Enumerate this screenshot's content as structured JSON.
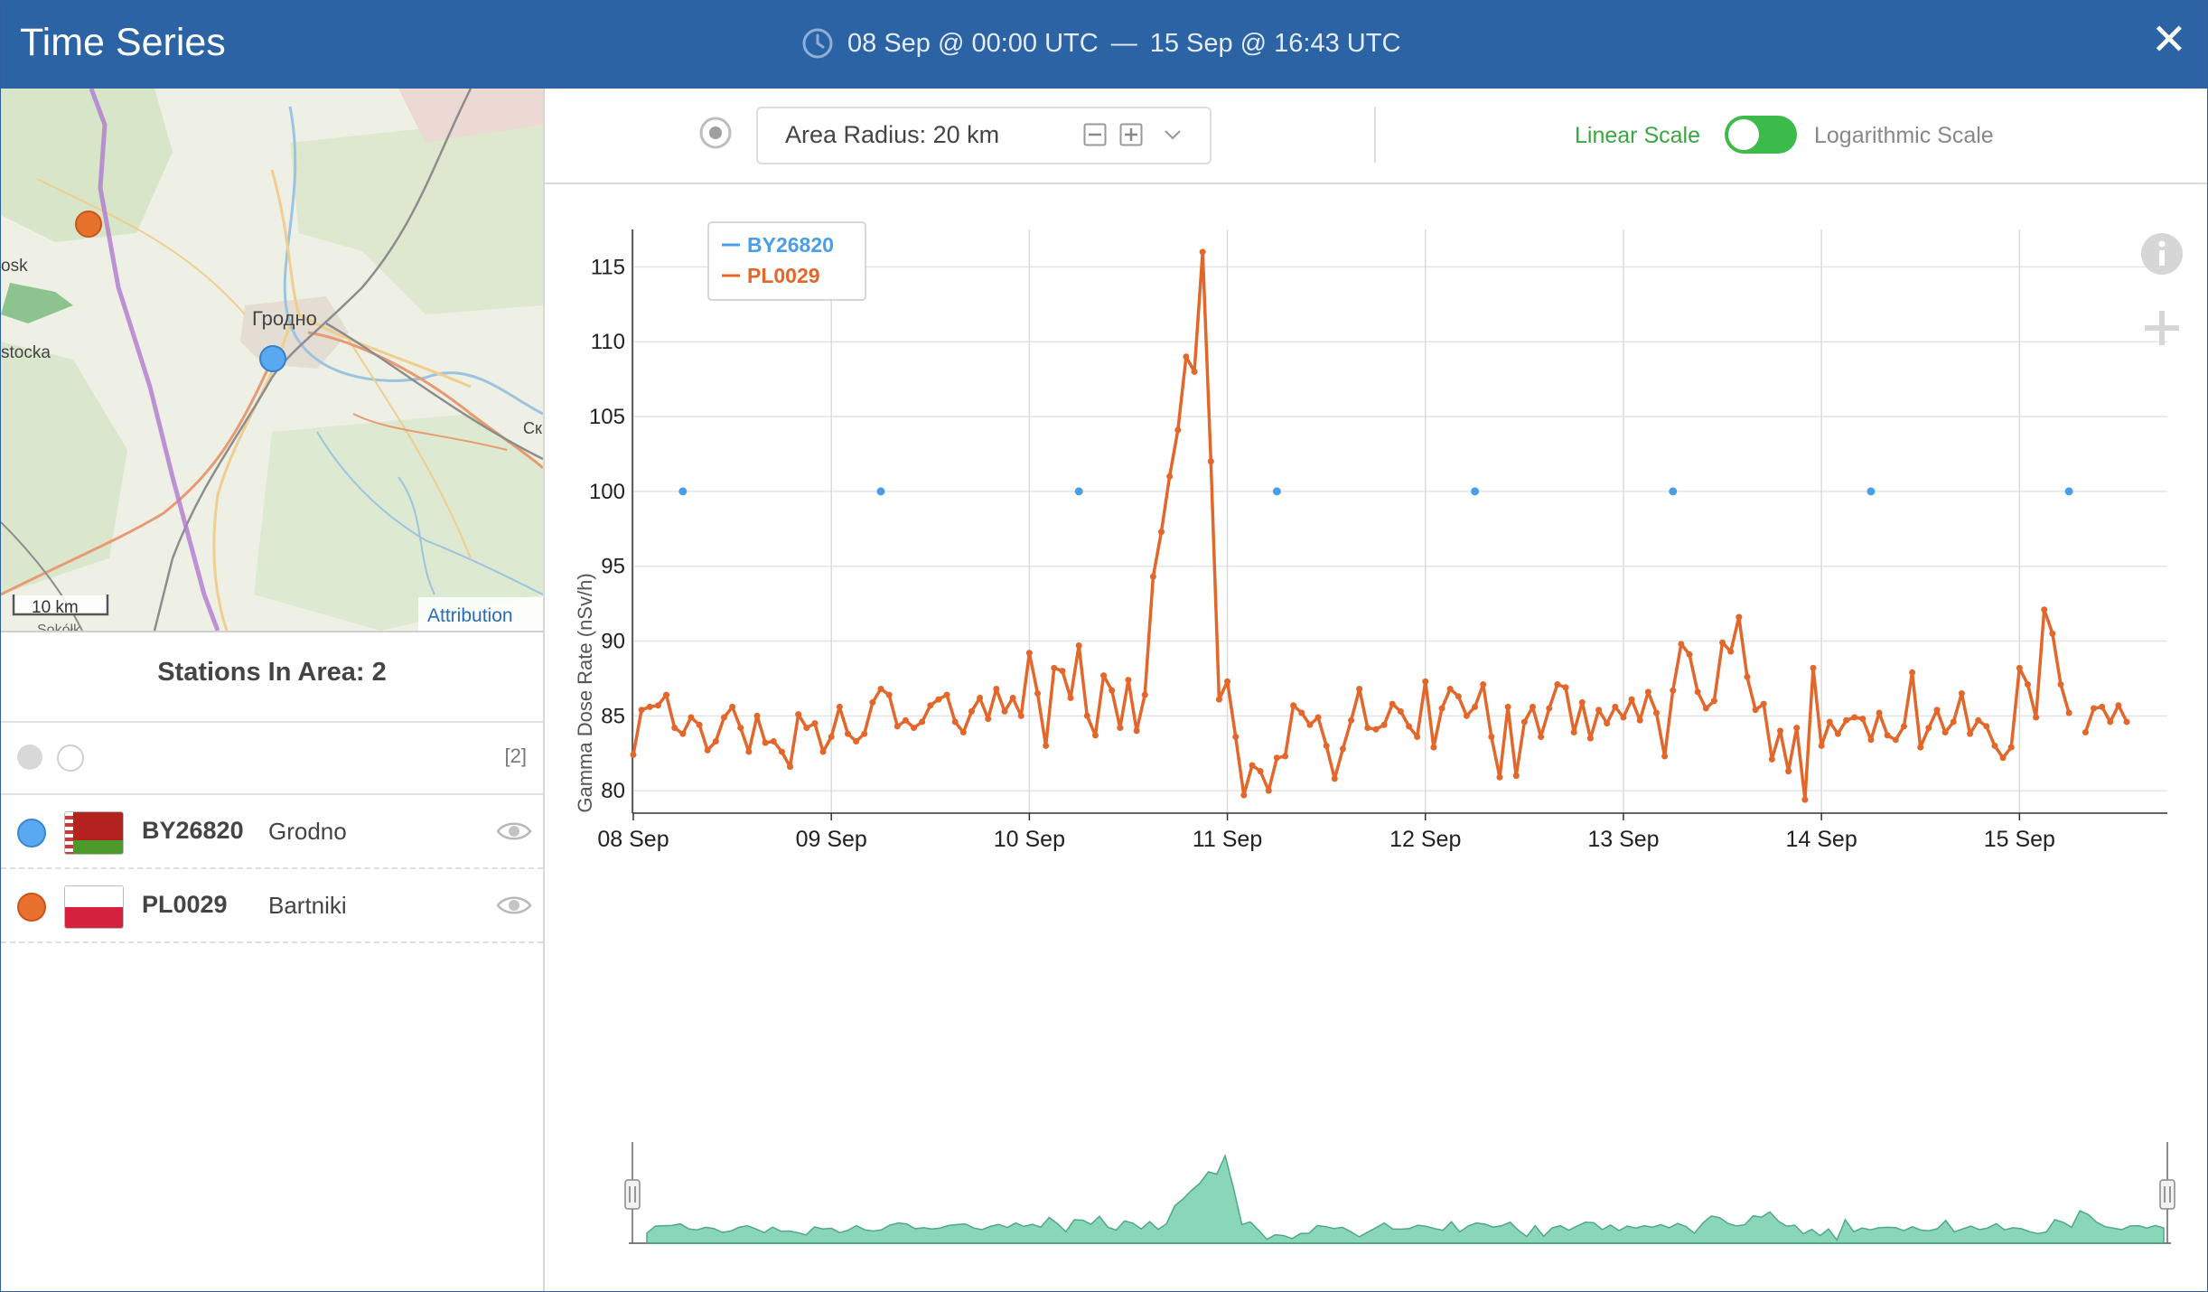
{
  "window": {
    "title": "Time Series",
    "time_range": {
      "start": "08 Sep @ 00:00 UTC",
      "separator": "—",
      "end": "15 Sep @ 16:43 UTC"
    },
    "close_label": "✕"
  },
  "map": {
    "labels": {
      "city": "Гродно",
      "west_left": "stocka",
      "west_top": "osk",
      "east": "Ск",
      "south": "Sokółk"
    },
    "scale_label": "10 km",
    "attribution_label": "Attribution"
  },
  "stations_panel": {
    "title": "Stations In Area: 2",
    "count_label": "[2]",
    "stations": [
      {
        "id": "BY26820",
        "name": "Grodno",
        "color": "#59a9f0",
        "flag": "belarus"
      },
      {
        "id": "PL0029",
        "name": "Bartniki",
        "color": "#e8712e",
        "flag": "poland"
      }
    ]
  },
  "toolbar": {
    "radius_label": "Area Radius: 20 km",
    "linear_label": "Linear Scale",
    "log_label": "Logarithmic Scale",
    "scale_mode": "linear"
  },
  "chart_data": {
    "type": "line",
    "ylabel": "Gamma Dose Rate (nSv/h)",
    "xlabel": "",
    "ylim": [
      78.5,
      117.5
    ],
    "yticks": [
      80,
      85,
      90,
      95,
      100,
      105,
      110,
      115
    ],
    "x_range": [
      "2023-09-08T00:00",
      "2023-09-15T16:43"
    ],
    "x_tick_labels": [
      "08 Sep",
      "09 Sep",
      "10 Sep",
      "11 Sep",
      "12 Sep",
      "13 Sep",
      "14 Sep",
      "15 Sep"
    ],
    "grid": true,
    "legend_position": "top-left",
    "navigator": true,
    "series": [
      {
        "name": "BY26820",
        "color": "#4a9ee8",
        "style": "markers",
        "x": [
          "2023-09-08T06:00",
          "2023-09-09T06:00",
          "2023-09-10T06:00",
          "2023-09-11T06:00",
          "2023-09-12T06:00",
          "2023-09-13T06:00",
          "2023-09-14T06:00",
          "2023-09-15T06:00"
        ],
        "y": [
          100,
          100,
          100,
          100,
          100,
          100,
          100,
          100
        ]
      },
      {
        "name": "PL0029",
        "color": "#e3662b",
        "style": "line",
        "x_start": "2023-09-08T00:00",
        "x_step_hours": 1,
        "y": [
          82.4,
          85.4,
          85.6,
          85.7,
          86.4,
          84.2,
          83.8,
          84.9,
          84.4,
          82.7,
          83.3,
          84.9,
          85.6,
          84.2,
          82.6,
          85,
          83.2,
          83.3,
          82.6,
          81.6,
          85.1,
          84.2,
          84.5,
          82.6,
          83.6,
          85.6,
          83.8,
          83.3,
          83.8,
          85.9,
          86.8,
          86.4,
          84.3,
          84.7,
          84.2,
          84.6,
          85.7,
          86.1,
          86.4,
          84.6,
          83.9,
          85.3,
          86.2,
          84.8,
          86.8,
          85.3,
          86.2,
          85,
          89.2,
          86.5,
          83,
          88.2,
          88,
          86.2,
          89.7,
          85,
          83.7,
          87.7,
          86.7,
          84.2,
          87.4,
          84,
          86.4,
          94.3,
          97.3,
          101,
          104.1,
          109,
          108,
          116,
          102,
          86.1,
          87.3,
          83.6,
          79.7,
          81.7,
          81.3,
          80,
          82.2,
          82.3,
          85.7,
          85.2,
          84.4,
          84.9,
          83,
          80.8,
          82.8,
          84.7,
          86.8,
          84.2,
          84.1,
          84.4,
          85.8,
          85.3,
          84.3,
          83.6,
          87.3,
          82.9,
          85.5,
          86.8,
          86.3,
          85,
          85.6,
          87.1,
          83.6,
          80.9,
          85.6,
          81,
          84.6,
          85.6,
          83.6,
          85.5,
          87.1,
          86.9,
          83.9,
          85.9,
          83.5,
          85.4,
          84.5,
          85.6,
          84.9,
          86.1,
          84.7,
          86.6,
          85.2,
          82.3,
          86.7,
          89.8,
          89.1,
          86.6,
          85.5,
          86,
          89.9,
          89.3,
          91.6,
          87.6,
          85.4,
          85.8,
          82.1,
          84,
          81.3,
          84.2,
          79.4,
          88.2,
          83,
          84.6,
          83.8,
          84.7,
          84.9,
          84.8,
          83.4,
          85.2,
          83.7,
          83.4,
          84.3,
          87.9,
          82.9,
          84.2,
          85.4,
          83.9,
          84.6,
          86.5,
          83.8,
          84.7,
          84.3,
          83,
          82.2,
          82.9,
          88.2,
          87.1,
          84.9,
          92.1,
          90.5,
          87.1,
          85.2,
          null,
          83.9,
          85.5,
          85.6,
          84.6,
          85.7,
          84.6
        ]
      }
    ]
  }
}
